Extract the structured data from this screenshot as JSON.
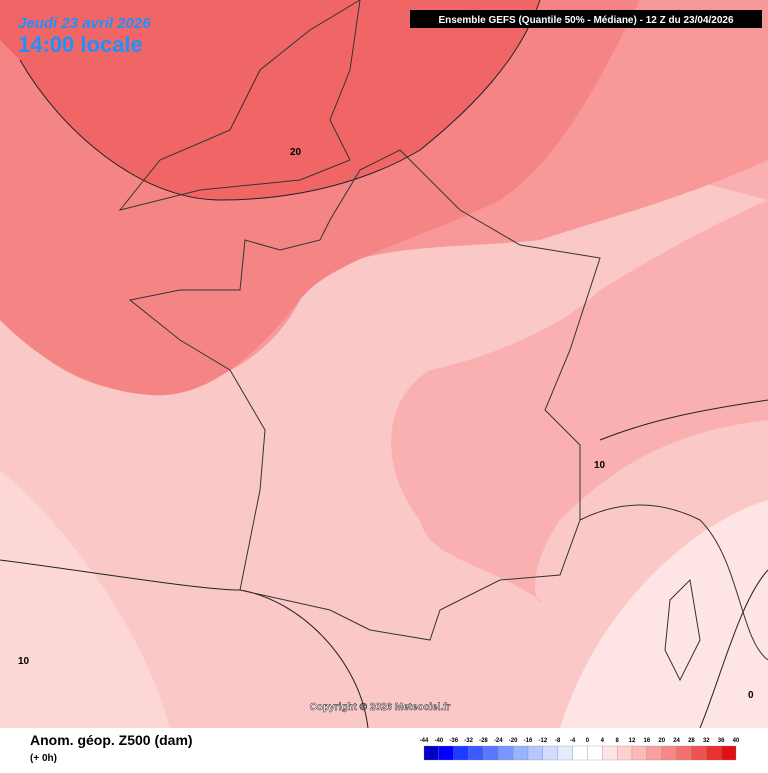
{
  "header": {
    "date": "Jeudi 23 avril 2026",
    "time": "14:00 locale",
    "model": "Ensemble GEFS  (Quantile 50% - Médiane) - 12 Z du 23/04/2026"
  },
  "map": {
    "contour_labels": [
      20,
      10,
      10,
      0
    ],
    "copyright": "Copyright © 2026 Meteociel.fr"
  },
  "legend": {
    "title": "Anom. géop. Z500 (dam)",
    "lead": "(+ 0h)",
    "ticks": [
      -44,
      -40,
      -36,
      -32,
      -28,
      -24,
      -20,
      -16,
      -12,
      -8,
      -4,
      0,
      4,
      8,
      12,
      16,
      20,
      24,
      28,
      32,
      36,
      40
    ],
    "colors": [
      "#0000c8",
      "#0000ff",
      "#1e3cff",
      "#3c5aff",
      "#5a78ff",
      "#7896ff",
      "#96b4ff",
      "#b4c8ff",
      "#d2dcff",
      "#e6ecff",
      "#ffffff",
      "#ffffff",
      "#ffe6e6",
      "#ffd0d0",
      "#fdb8b8",
      "#fba0a0",
      "#f88888",
      "#f57070",
      "#f05050",
      "#eb3030",
      "#e01010"
    ]
  }
}
